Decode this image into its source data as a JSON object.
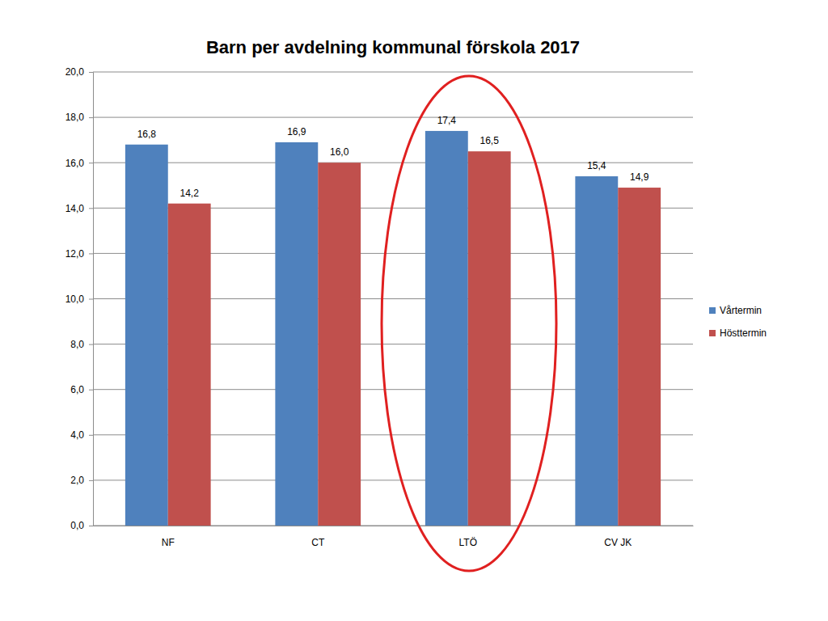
{
  "chart_data": {
    "type": "bar",
    "title": "Barn per avdelning kommunal förskola 2017",
    "categories": [
      "NF",
      "CT",
      "LTÖ",
      "CV JK"
    ],
    "series": [
      {
        "name": "Vårtermin",
        "color": "#4f81bd",
        "values": [
          16.8,
          16.9,
          17.4,
          15.4
        ],
        "value_labels": [
          "16,8",
          "16,9",
          "17,4",
          "15,4"
        ]
      },
      {
        "name": "Hösttermin",
        "color": "#c0504d",
        "values": [
          14.2,
          16.0,
          16.5,
          14.9
        ],
        "value_labels": [
          "14,2",
          "16,0",
          "16,5",
          "14,9"
        ]
      }
    ],
    "ylim": [
      0,
      20
    ],
    "yticks": [
      {
        "value": 0,
        "label": "0,0"
      },
      {
        "value": 2,
        "label": "2,0"
      },
      {
        "value": 4,
        "label": "4,0"
      },
      {
        "value": 6,
        "label": "6,0"
      },
      {
        "value": 8,
        "label": "8,0"
      },
      {
        "value": 10,
        "label": "10,0"
      },
      {
        "value": 12,
        "label": "12,0"
      },
      {
        "value": 14,
        "label": "14,0"
      },
      {
        "value": 16,
        "label": "16,0"
      },
      {
        "value": 18,
        "label": "18,0"
      },
      {
        "value": 20,
        "label": "20,0"
      }
    ],
    "grid": true,
    "legend": "right",
    "data_labels": true
  }
}
